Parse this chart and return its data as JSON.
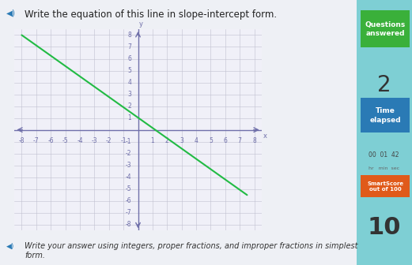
{
  "background_color": "#7ecfd4",
  "content_bg": "#eef0f5",
  "graph_bg": "#f0f0f8",
  "title": "Write the equation of this line in slope-intercept form.",
  "title_fontsize": 8.5,
  "grid_color": "#c0c0d0",
  "axis_color": "#7070aa",
  "line_color": "#22bb44",
  "line_x": [
    -8.0,
    7.5
  ],
  "line_y": [
    8.0,
    -5.5
  ],
  "xlim": [
    -8.5,
    8.5
  ],
  "ylim": [
    -8.5,
    8.5
  ],
  "xticks": [
    -8,
    -7,
    -6,
    -5,
    -4,
    -3,
    -2,
    -1,
    1,
    2,
    3,
    4,
    5,
    6,
    7,
    8
  ],
  "yticks": [
    -8,
    -7,
    -6,
    -5,
    -4,
    -3,
    -2,
    -1,
    1,
    2,
    3,
    4,
    5,
    6,
    7,
    8
  ],
  "tick_fontsize": 5.5,
  "qa_box_color": "#3ab03a",
  "qa_text": "Questions\nanswered",
  "qa_value": "2",
  "time_box_color": "#2a7ab5",
  "time_text": "Time\nelapsed",
  "time_digits": "00  01  42",
  "time_units": "hr   min  sec",
  "smartscore_box_color": "#e05a1a",
  "smartscore_text": "SmartScore\nout of 100",
  "smartscore_value": "10",
  "bottom_text": "Write your answer using integers, proper fractions, and improper fractions in simplest\nform.",
  "bottom_fontsize": 7.0,
  "speaker_color": "#2a7ab5",
  "value_color": "#333333"
}
